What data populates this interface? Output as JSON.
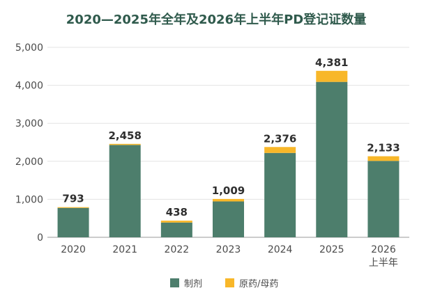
{
  "chart_data": {
    "type": "bar",
    "stacked": true,
    "title": "2020—2025年全年及2026年上半年PD登记证数量",
    "categories": [
      "2020",
      "2021",
      "2022",
      "2023",
      "2024",
      "2025",
      "2026\n上半年"
    ],
    "series": [
      {
        "name": "制剂",
        "values": [
          773,
          2430,
          388,
          944,
          2220,
          4090,
          2010
        ],
        "color": "#4d7e6c"
      },
      {
        "name": "原药/母药",
        "values": [
          20,
          28,
          50,
          65,
          156,
          291,
          123
        ],
        "color": "#f8b729"
      }
    ],
    "totals": [
      "793",
      "2,458",
      "438",
      "1,009",
      "2,376",
      "4,381",
      "2,133"
    ],
    "yticks": [
      "0",
      "1,000",
      "2,000",
      "3,000",
      "4,000",
      "5,000"
    ],
    "ylim": [
      0,
      5000
    ],
    "grid": true,
    "legend": "bottom-center"
  }
}
